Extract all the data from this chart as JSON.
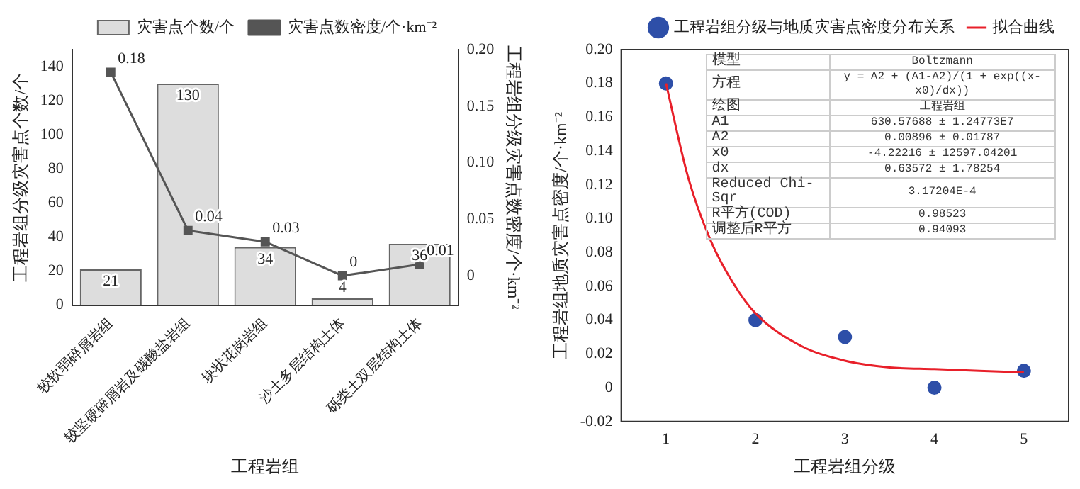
{
  "chart_data": [
    {
      "type": "bar",
      "xlabel": "工程岩组",
      "ylabel": "工程岩组分级灾害点个数/个",
      "y2label": "工程岩组分级灾害点数密度/个·km⁻²",
      "categories": [
        "较软弱碎屑岩组",
        "较坚硬碎屑岩及碳酸盐岩组",
        "块状花岗岩组",
        "沙土多层结构土体",
        "砾类土双层结构土体"
      ],
      "series": [
        {
          "name": "灾害点个数/个",
          "type": "bar",
          "color": "#dddddd",
          "values": [
            21,
            130,
            34,
            4,
            36
          ]
        },
        {
          "name": "灾害点数密度/个·km⁻²",
          "type": "line",
          "axis": "y2",
          "color": "#555555",
          "marker": "square",
          "values": [
            0.18,
            0.04,
            0.03,
            0,
            0.01
          ]
        }
      ],
      "ylim": [
        0,
        150
      ],
      "yticks": [
        0,
        20,
        40,
        60,
        80,
        100,
        120,
        140
      ],
      "y2lim": [
        -0.026,
        0.2
      ],
      "y2ticks": [
        {
          "value": 0,
          "label": "0"
        },
        0.05,
        {
          "value": 0.1,
          "label": "0.10"
        },
        0.15,
        {
          "value": 0.2,
          "label": "0.20"
        }
      ],
      "legend": "top",
      "data_labels": true
    },
    {
      "type": "scatter",
      "xlabel": "工程岩组分级",
      "ylabel": "工程岩组地质灾害点密度/个·km⁻²",
      "series": [
        {
          "name": "工程岩组分级与地质灾害点密度分布关系",
          "type": "scatter",
          "color": "#2e4fa8",
          "marker": "circle",
          "x": [
            1,
            2,
            3,
            4,
            5
          ],
          "values": [
            0.18,
            0.04,
            0.03,
            0,
            0.01
          ]
        },
        {
          "name": "拟合曲线",
          "type": "line",
          "color": "#e8202a",
          "marker": "none",
          "x": [
            1,
            1.25,
            1.5,
            1.75,
            2,
            2.5,
            3,
            3.5,
            4,
            4.5,
            5
          ],
          "values": [
            0.18,
            0.124,
            0.087,
            0.062,
            0.044,
            0.025,
            0.016,
            0.012,
            0.011,
            0.01,
            0.009
          ]
        }
      ],
      "xlim": [
        0.5,
        5.5
      ],
      "xticks": [
        1,
        2,
        3,
        4,
        5
      ],
      "ylim": [
        -0.02,
        0.2
      ],
      "yticks": [
        -0.02,
        0,
        0.02,
        0.04,
        0.06,
        0.08,
        {
          "value": 0.1,
          "label": "0.10"
        },
        0.12,
        0.14,
        0.16,
        0.18,
        {
          "value": 0.2,
          "label": "0.20"
        }
      ],
      "legend": "top right",
      "annotations": [
        "模型",
        "Boltzmann",
        "方程",
        "y = A2 + (A1-A2)/(1 + exp((x-x0)/dx))",
        "绘图",
        "工程岩组",
        "A1",
        "630.57688 ± 1.24773E7",
        "A2",
        "0.00896 ± 0.01787",
        "x0",
        "-4.22216 ± 12597.04201",
        "dx",
        "0.63572 ± 1.78254",
        "Reduced Chi-Sqr",
        "3.17204E-4",
        "R平方(COD)",
        "0.98523",
        "调整后R平方",
        "0.94093"
      ]
    }
  ]
}
